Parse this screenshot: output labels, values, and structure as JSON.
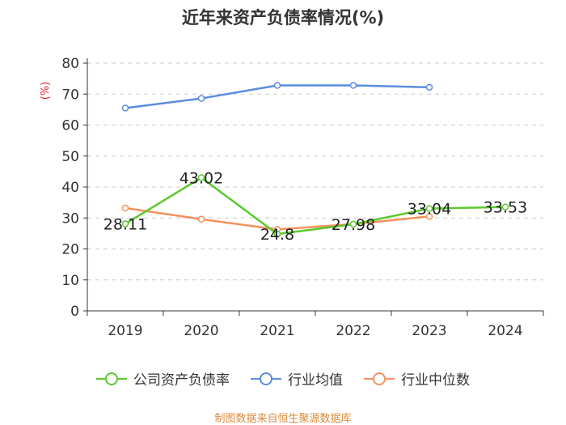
{
  "chart_data": {
    "type": "line",
    "title": "近年来资产负债率情况(%)",
    "ylabel": "(%)",
    "xlabel": "",
    "ylim": [
      0,
      80
    ],
    "yticks": [
      0,
      10,
      20,
      30,
      40,
      50,
      60,
      70,
      80
    ],
    "categories": [
      "2019",
      "2020",
      "2021",
      "2022",
      "2023",
      "2024"
    ],
    "grid": true,
    "legend_position": "bottom",
    "series": [
      {
        "name": "公司资产负债率",
        "color": "#5cc82c",
        "values": [
          28.11,
          43.02,
          24.8,
          27.98,
          33.04,
          33.53
        ],
        "labels": [
          "28.11",
          "43.02",
          "24.8",
          "27.98",
          "33.04",
          "33.53"
        ]
      },
      {
        "name": "行业均值",
        "color": "#5b8ddf",
        "values": [
          65.5,
          68.6,
          72.8,
          72.8,
          72.2,
          null
        ]
      },
      {
        "name": "行业中位数",
        "color": "#f5915c",
        "values": [
          33.2,
          29.6,
          26.3,
          28.0,
          30.5,
          null
        ]
      }
    ]
  },
  "source": "制图数据来自恒生聚源数据库",
  "colors": {
    "title": "#333333",
    "ylabel": "#e02020",
    "source": "#d98b3a",
    "axis": "#333333",
    "grid": "#cccccc"
  }
}
